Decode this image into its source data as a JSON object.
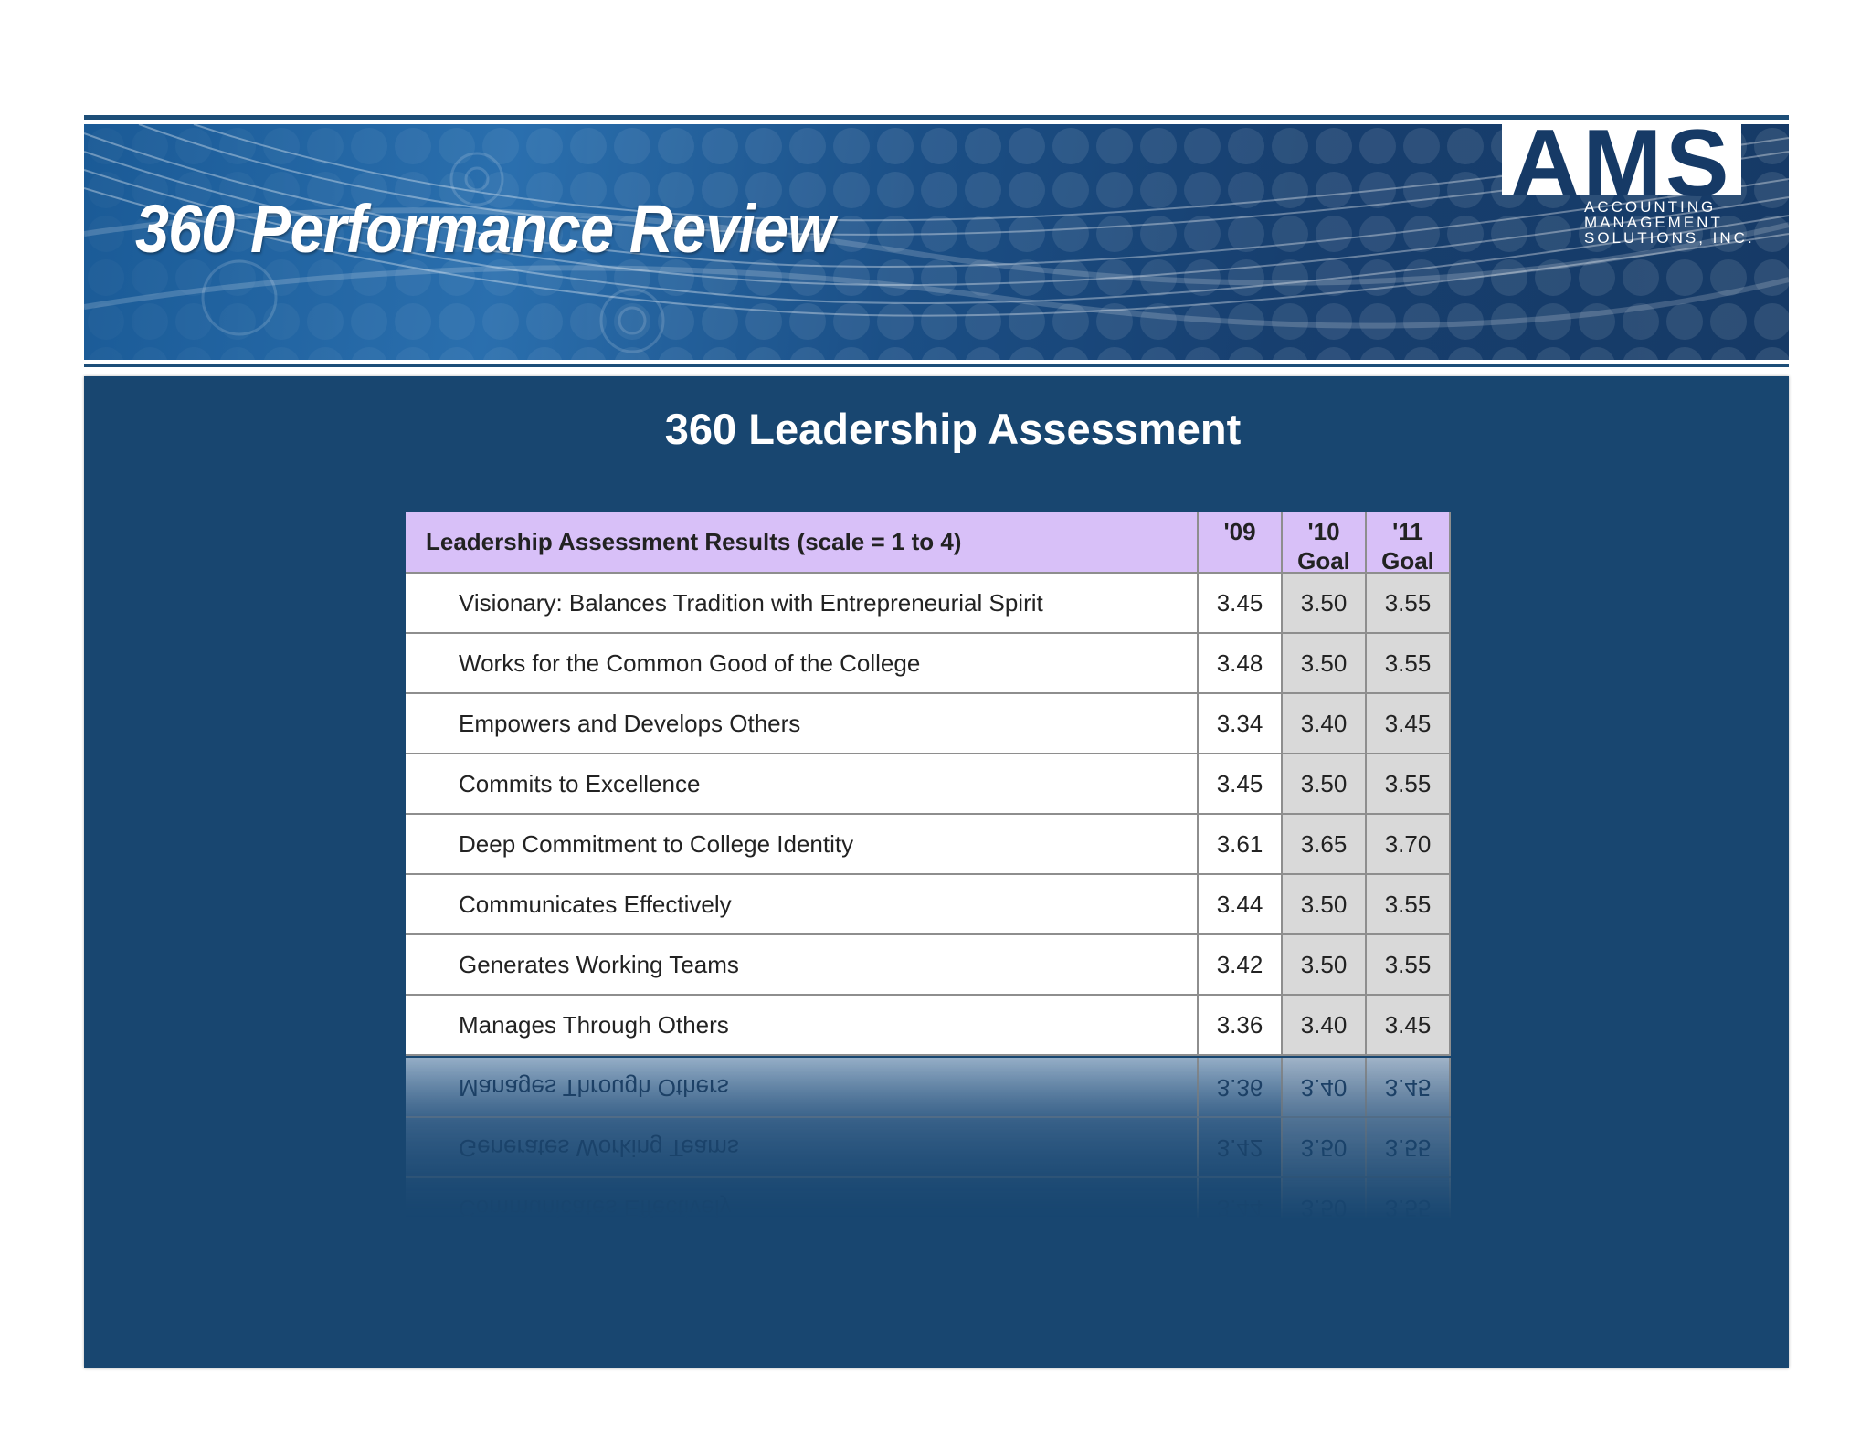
{
  "header": {
    "title": "360 Performance Review",
    "logo": {
      "letters": "AMS",
      "line1": "ACCOUNTING",
      "line2": "MANAGEMENT",
      "line3": "SOLUTIONS, INC."
    }
  },
  "slide": {
    "subtitle": "360 Leadership Assessment"
  },
  "table": {
    "header": {
      "label": "Leadership Assessment Results (scale = 1 to 4)",
      "col1": "'09",
      "col2_line1": "'10",
      "col2_line2": "Goal",
      "col3_line1": "'11",
      "col3_line2": "Goal"
    },
    "rows": [
      {
        "label": "Visionary: Balances Tradition with Entrepreneurial Spirit",
        "y09": "3.45",
        "y10": "3.50",
        "y11": "3.55"
      },
      {
        "label": "Works for the Common Good of the College",
        "y09": "3.48",
        "y10": "3.50",
        "y11": "3.55"
      },
      {
        "label": "Empowers and Develops Others",
        "y09": "3.34",
        "y10": "3.40",
        "y11": "3.45"
      },
      {
        "label": "Commits to Excellence",
        "y09": "3.45",
        "y10": "3.50",
        "y11": "3.55"
      },
      {
        "label": "Deep Commitment to College Identity",
        "y09": "3.61",
        "y10": "3.65",
        "y11": "3.70"
      },
      {
        "label": "Communicates Effectively",
        "y09": "3.44",
        "y10": "3.50",
        "y11": "3.55"
      },
      {
        "label": "Generates Working Teams",
        "y09": "3.42",
        "y10": "3.50",
        "y11": "3.55"
      },
      {
        "label": "Manages Through Others",
        "y09": "3.36",
        "y10": "3.40",
        "y11": "3.45"
      }
    ]
  },
  "colors": {
    "banner_blue": "#1b4f86",
    "panel_blue": "#184670",
    "header_lavender": "#d8c0f8",
    "goal_column_gray": "#d9d9d9"
  }
}
